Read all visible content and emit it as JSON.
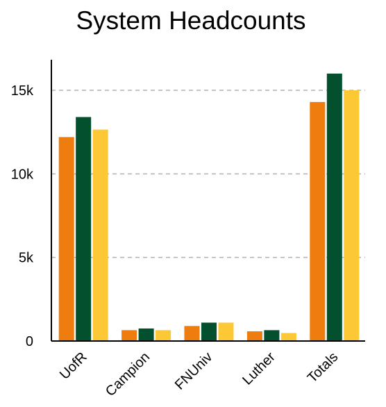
{
  "chart_data": {
    "type": "bar",
    "title": "System Headcounts",
    "xlabel": "",
    "ylabel": "",
    "categories": [
      "UofR",
      "Campion",
      "FNUniv",
      "Luther",
      "Totals"
    ],
    "series": [
      {
        "values": [
          12200,
          650,
          900,
          580,
          14300
        ],
        "color": "#ee7c0e"
      },
      {
        "values": [
          13400,
          750,
          1100,
          650,
          16000
        ],
        "color": "#03502f"
      },
      {
        "values": [
          12650,
          650,
          1100,
          480,
          15000
        ],
        "color": "#fdc835"
      }
    ],
    "ylim": [
      0,
      16000
    ],
    "yticks": [
      0,
      5000,
      10000,
      15000
    ],
    "ytick_labels": [
      "0",
      "5k",
      "10k",
      "15k"
    ],
    "grid": true,
    "legend": "none"
  }
}
